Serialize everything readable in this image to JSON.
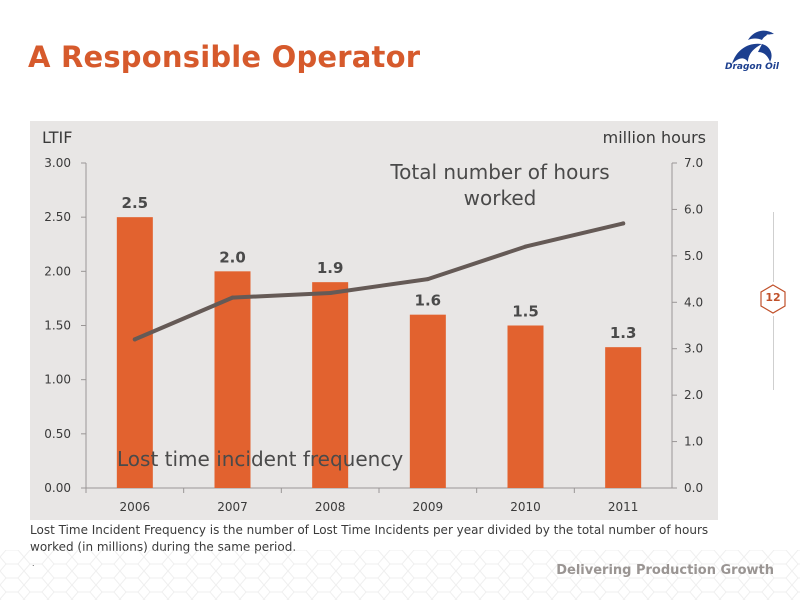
{
  "slide": {
    "title": "A Responsible Operator",
    "logo_text": "Dragon Oil",
    "footnote": "Lost Time Incident Frequency is the number of Lost Time Incidents per year divided by the total number of hours worked (in millions) during the same period.",
    "footnote_mark": ".",
    "tagline": "Delivering Production Growth",
    "page_number": "12"
  },
  "colors": {
    "title": "#d65a2c",
    "bar": "#e2622f",
    "line": "#655a56",
    "panel": "#e8e6e5"
  },
  "chart_data": {
    "type": "bar",
    "categories": [
      "2006",
      "2007",
      "2008",
      "2009",
      "2010",
      "2011"
    ],
    "series": [
      {
        "name": "Lost time incident frequency",
        "type": "bar",
        "axis": "left",
        "values": [
          2.5,
          2.0,
          1.9,
          1.6,
          1.5,
          1.3
        ],
        "data_labels": [
          "2.5",
          "2.0",
          "1.9",
          "1.6",
          "1.5",
          "1.3"
        ],
        "color": "#e2622f"
      },
      {
        "name": "Total number of hours worked",
        "type": "line",
        "axis": "right",
        "values": [
          3.2,
          4.1,
          4.2,
          4.5,
          5.2,
          5.7
        ],
        "color": "#655a56"
      }
    ],
    "y_left": {
      "label": "LTIF",
      "range": [
        0,
        3.0
      ],
      "ticks": [
        "0.00",
        "0.50",
        "1.00",
        "1.50",
        "2.00",
        "2.50",
        "3.00"
      ]
    },
    "y_right": {
      "label": "million hours",
      "range": [
        0,
        7.0
      ],
      "ticks": [
        "0.0",
        "1.0",
        "2.0",
        "3.0",
        "4.0",
        "5.0",
        "6.0",
        "7.0"
      ]
    },
    "annotations": {
      "line_label_1": "Total number of hours",
      "line_label_2": "worked",
      "bar_label": "Lost time incident frequency"
    },
    "grid": false
  }
}
